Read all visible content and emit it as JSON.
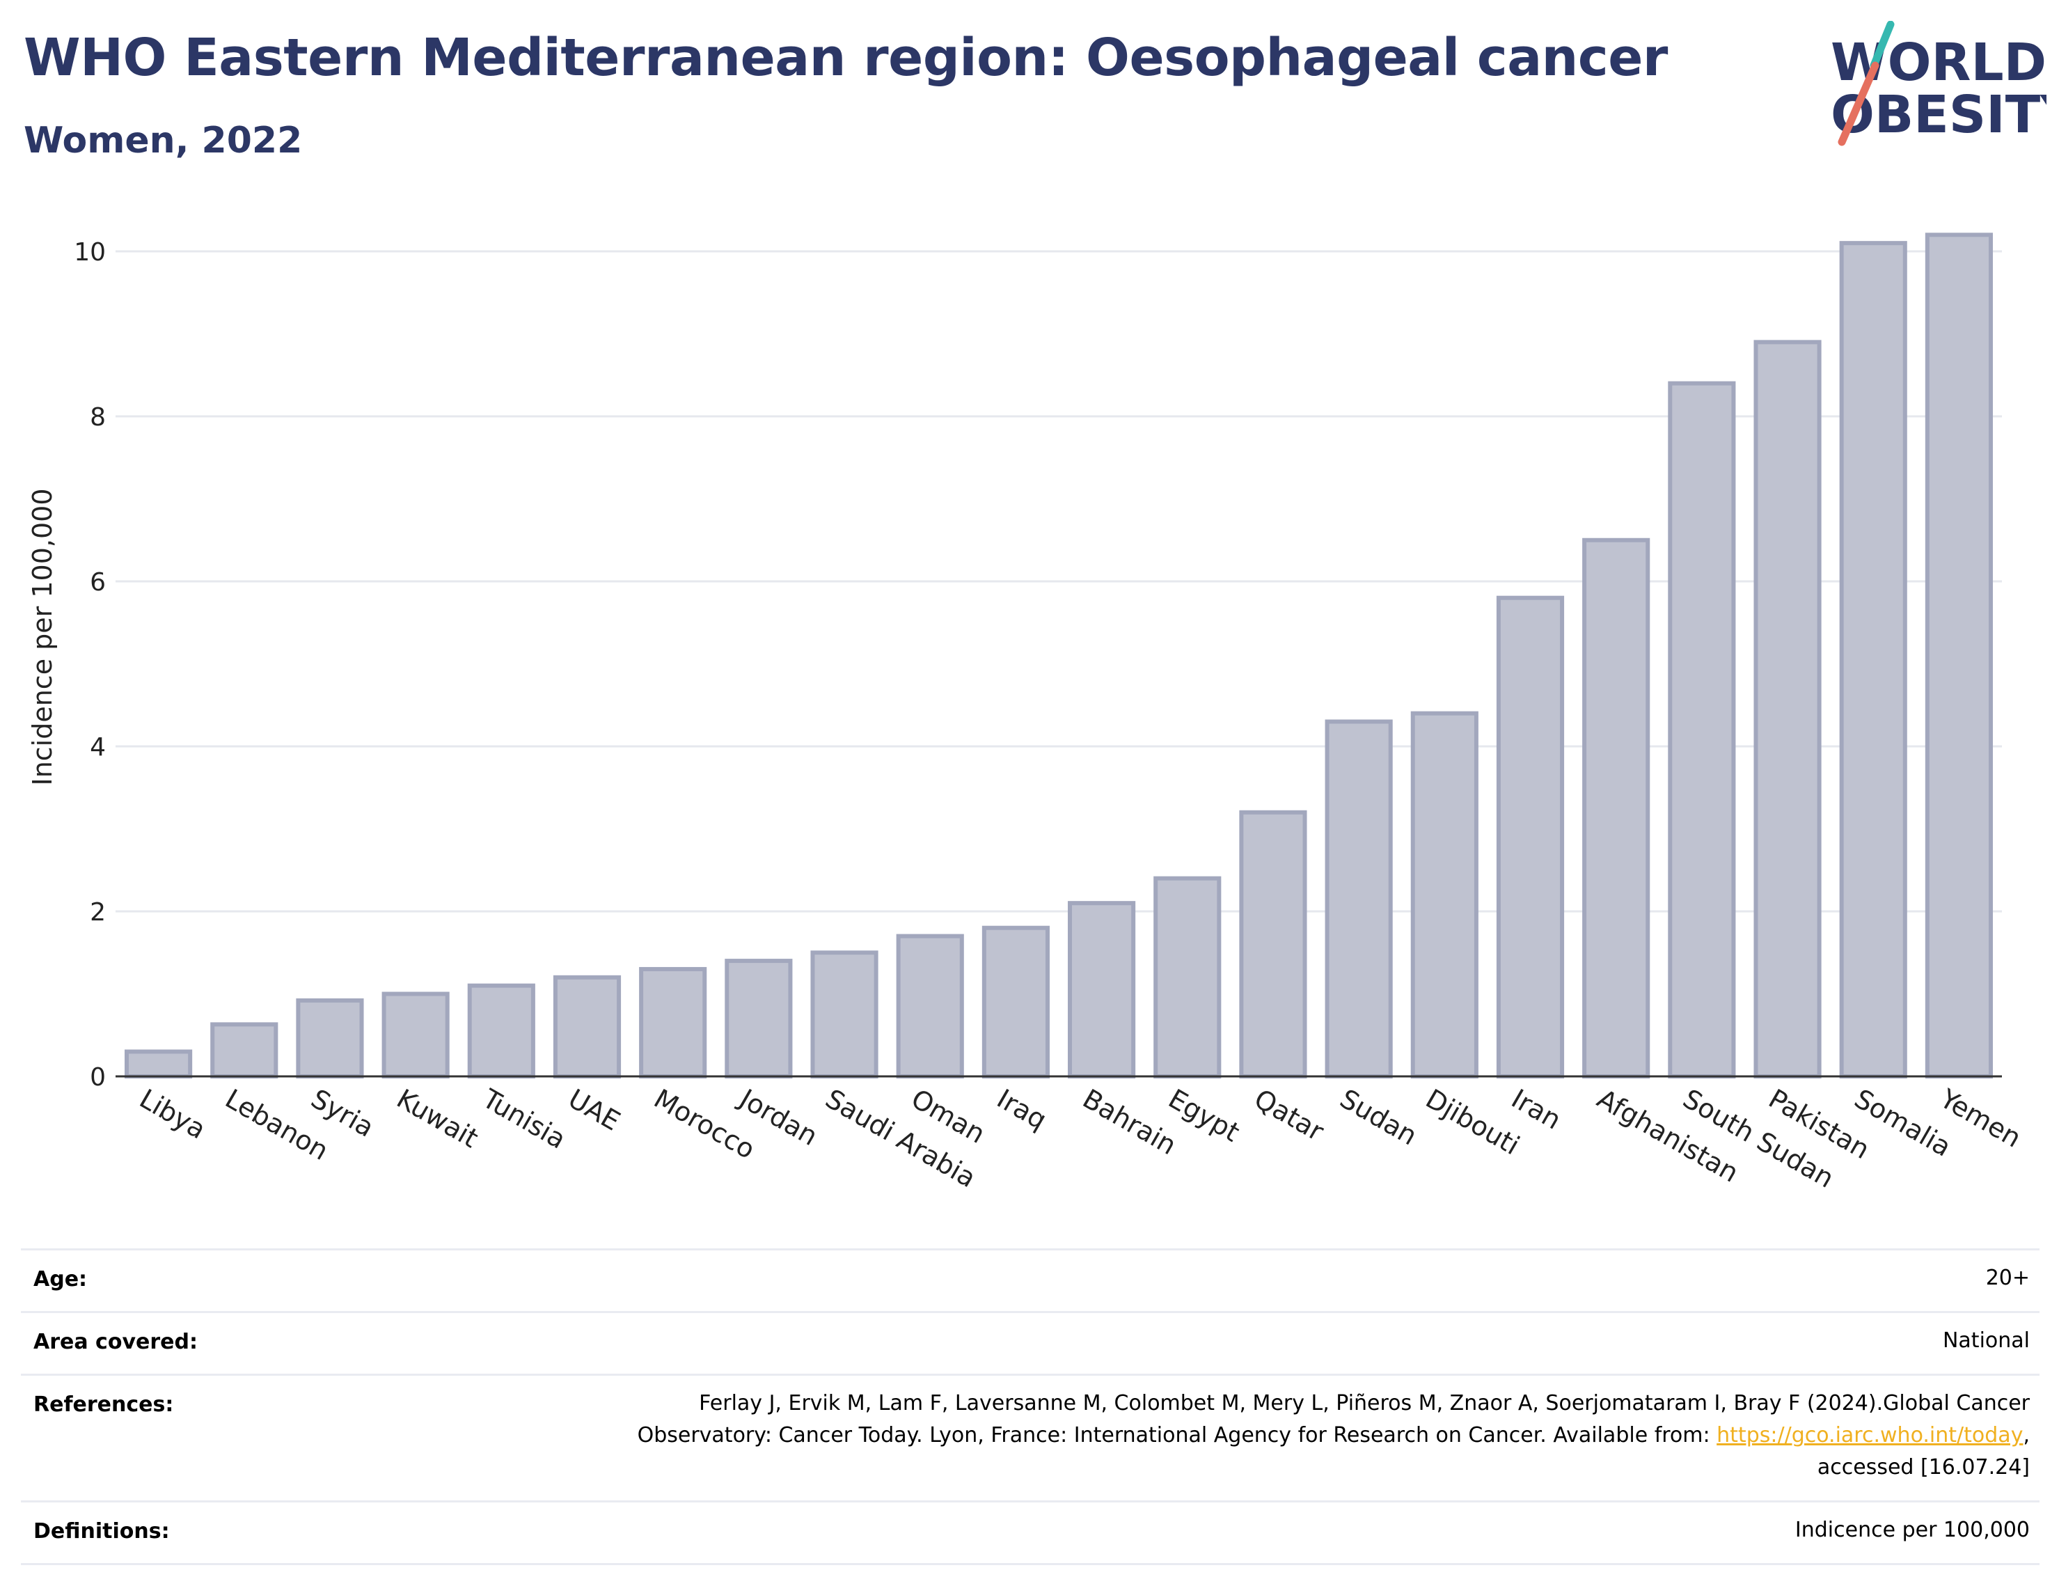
{
  "header": {
    "title": "WHO Eastern Mediterranean region: Oesophageal cancer",
    "subtitle": "Women, 2022"
  },
  "logo": {
    "line1": "WORLD",
    "line2": "OBESITY"
  },
  "chart_data": {
    "type": "bar",
    "categories": [
      "Libya",
      "Lebanon",
      "Syria",
      "Kuwait",
      "Tunisia",
      "UAE",
      "Morocco",
      "Jordan",
      "Saudi Arabia",
      "Oman",
      "Iraq",
      "Bahrain",
      "Egypt",
      "Qatar",
      "Sudan",
      "Djibouti",
      "Iran",
      "Afghanistan",
      "South Sudan",
      "Pakistan",
      "Somalia",
      "Yemen"
    ],
    "values": [
      0.3,
      0.63,
      0.92,
      1.0,
      1.1,
      1.2,
      1.3,
      1.4,
      1.5,
      1.7,
      1.8,
      2.1,
      2.4,
      3.2,
      4.3,
      4.4,
      5.8,
      6.5,
      8.4,
      8.9,
      10.1,
      10.2
    ],
    "ylabel": "Incidence per 100,000",
    "ylim": [
      0,
      10.5
    ],
    "yticks": [
      0,
      2,
      4,
      6,
      8,
      10
    ],
    "grid": true,
    "colors": {
      "bar_fill": "#bfc2d0",
      "bar_stroke": "#a2a7bd",
      "grid": "#e6e8ee",
      "axis": "#333333"
    }
  },
  "info": {
    "age": {
      "label": "Age:",
      "value": "20+"
    },
    "area": {
      "label": "Area covered:",
      "value": "National"
    },
    "references": {
      "label": "References:",
      "line1": "Ferlay J, Ervik M, Lam F, Laversanne M, Colombet M, Mery L, Piñeros M, Znaor A, Soerjomataram I, Bray F (2024).Global Cancer",
      "line2_pre": "Observatory: Cancer Today. Lyon, France: International Agency for Research on Cancer. Available from: ",
      "link": "https://gco.iarc.who.int/today",
      "line2_post": ",",
      "line3": "accessed [16.07.24]"
    },
    "definitions": {
      "label": "Definitions:",
      "value": "Indicence per 100,000"
    }
  }
}
